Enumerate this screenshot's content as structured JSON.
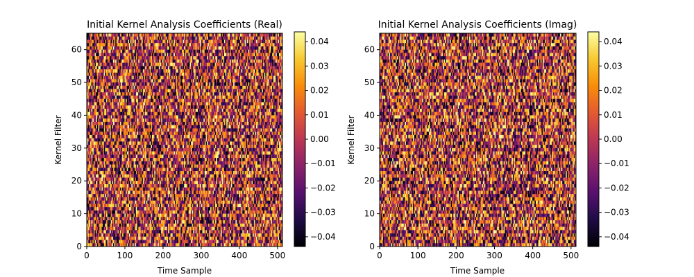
{
  "chart_data": [
    {
      "type": "heatmap",
      "title": "Initial Kernel Analysis Coefficients (Real)",
      "xlabel": "Time Sample",
      "ylabel": "Kernel Filter",
      "xlim": [
        0,
        513
      ],
      "ylim": [
        0,
        65
      ],
      "x_ticks": [
        "0",
        "100",
        "200",
        "300",
        "400",
        "500"
      ],
      "y_ticks": [
        "0",
        "10",
        "20",
        "30",
        "40",
        "50",
        "60"
      ],
      "rows": 65,
      "cols": 513,
      "colormap": "inferno",
      "value_range": [
        -0.044,
        0.044
      ],
      "distribution": "uniform random noise",
      "colorbar": {
        "ticks": [
          "0.04",
          "0.03",
          "0.02",
          "0.01",
          "0.00",
          "−0.01",
          "−0.02",
          "−0.03",
          "−0.04"
        ]
      }
    },
    {
      "type": "heatmap",
      "title": "Initial Kernel Analysis Coefficients (Imag)",
      "xlabel": "Time Sample",
      "ylabel": "Kernel Filter",
      "xlim": [
        0,
        513
      ],
      "ylim": [
        0,
        65
      ],
      "x_ticks": [
        "0",
        "100",
        "200",
        "300",
        "400",
        "500"
      ],
      "y_ticks": [
        "0",
        "10",
        "20",
        "30",
        "40",
        "50",
        "60"
      ],
      "rows": 65,
      "cols": 513,
      "colormap": "inferno",
      "value_range": [
        -0.044,
        0.044
      ],
      "distribution": "uniform random noise",
      "colorbar": {
        "ticks": [
          "0.04",
          "0.03",
          "0.02",
          "0.01",
          "0.00",
          "−0.01",
          "−0.02",
          "−0.03",
          "−0.04"
        ]
      }
    }
  ]
}
